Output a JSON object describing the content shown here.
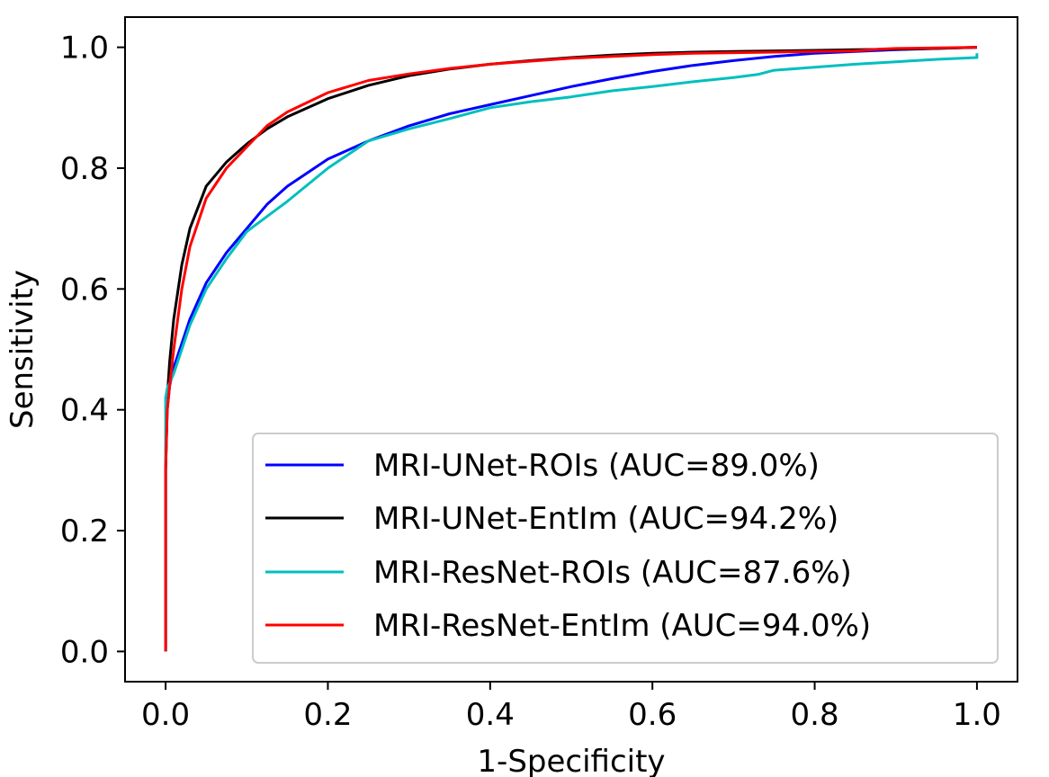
{
  "chart_data": {
    "type": "line",
    "xlabel": "1-Specificity",
    "ylabel": "Sensitivity",
    "xlim": [
      -0.05,
      1.05
    ],
    "ylim": [
      -0.05,
      1.05
    ],
    "xticks": [
      "0.0",
      "0.2",
      "0.4",
      "0.6",
      "0.8",
      "1.0"
    ],
    "yticks": [
      "0.0",
      "0.2",
      "0.4",
      "0.6",
      "0.8",
      "1.0"
    ],
    "grid": false,
    "legend_position": "lower-right",
    "series": [
      {
        "name": "MRI-UNet-ROIs (AUC=89.0%)",
        "color": "#0000ff",
        "x": [
          0,
          0,
          0.002,
          0.005,
          0.01,
          0.02,
          0.03,
          0.05,
          0.075,
          0.1,
          0.125,
          0.15,
          0.2,
          0.25,
          0.3,
          0.35,
          0.4,
          0.45,
          0.5,
          0.55,
          0.6,
          0.65,
          0.7,
          0.75,
          0.8,
          0.85,
          0.9,
          0.95,
          1.0
        ],
        "y": [
          0,
          0.3,
          0.4,
          0.44,
          0.47,
          0.51,
          0.55,
          0.61,
          0.66,
          0.7,
          0.74,
          0.77,
          0.815,
          0.845,
          0.87,
          0.89,
          0.905,
          0.92,
          0.935,
          0.948,
          0.96,
          0.97,
          0.978,
          0.985,
          0.99,
          0.993,
          0.996,
          0.998,
          1.0
        ]
      },
      {
        "name": "MRI-UNet-EntIm (AUC=94.2%)",
        "color": "#000000",
        "x": [
          0,
          0,
          0.002,
          0.005,
          0.01,
          0.02,
          0.03,
          0.05,
          0.075,
          0.1,
          0.125,
          0.15,
          0.2,
          0.25,
          0.3,
          0.35,
          0.4,
          0.45,
          0.5,
          0.55,
          0.6,
          0.65,
          0.7,
          0.75,
          0.8,
          0.85,
          0.9,
          0.95,
          1.0
        ],
        "y": [
          0,
          0.3,
          0.42,
          0.48,
          0.55,
          0.64,
          0.7,
          0.77,
          0.81,
          0.84,
          0.865,
          0.885,
          0.915,
          0.937,
          0.953,
          0.964,
          0.972,
          0.978,
          0.983,
          0.987,
          0.99,
          0.992,
          0.993,
          0.994,
          0.995,
          0.996,
          0.997,
          0.998,
          1.0
        ]
      },
      {
        "name": "MRI-ResNet-ROIs (AUC=87.6%)",
        "color": "#00bfbf",
        "x": [
          0,
          0,
          0.002,
          0.005,
          0.01,
          0.02,
          0.03,
          0.05,
          0.075,
          0.1,
          0.125,
          0.15,
          0.2,
          0.25,
          0.3,
          0.35,
          0.4,
          0.45,
          0.5,
          0.55,
          0.6,
          0.65,
          0.7,
          0.73,
          0.75,
          0.8,
          0.85,
          0.9,
          0.95,
          1.0,
          1.0
        ],
        "y": [
          0,
          0.42,
          0.435,
          0.445,
          0.46,
          0.5,
          0.54,
          0.6,
          0.65,
          0.695,
          0.72,
          0.745,
          0.8,
          0.845,
          0.865,
          0.882,
          0.9,
          0.91,
          0.918,
          0.928,
          0.935,
          0.943,
          0.95,
          0.955,
          0.962,
          0.967,
          0.972,
          0.976,
          0.98,
          0.983,
          0.99
        ]
      },
      {
        "name": "MRI-ResNet-EntIm (AUC=94.0%)",
        "color": "#ff0000",
        "x": [
          0,
          0,
          0.002,
          0.005,
          0.01,
          0.02,
          0.03,
          0.05,
          0.075,
          0.1,
          0.125,
          0.15,
          0.2,
          0.25,
          0.3,
          0.35,
          0.4,
          0.45,
          0.5,
          0.55,
          0.6,
          0.65,
          0.7,
          0.75,
          0.8,
          0.85,
          0.88,
          0.9,
          0.95,
          1.0
        ],
        "y": [
          0,
          0.3,
          0.4,
          0.44,
          0.5,
          0.6,
          0.67,
          0.75,
          0.8,
          0.835,
          0.87,
          0.893,
          0.925,
          0.945,
          0.956,
          0.965,
          0.972,
          0.977,
          0.982,
          0.985,
          0.988,
          0.99,
          0.991,
          0.992,
          0.993,
          0.994,
          0.997,
          0.998,
          0.999,
          1.0
        ]
      }
    ]
  }
}
